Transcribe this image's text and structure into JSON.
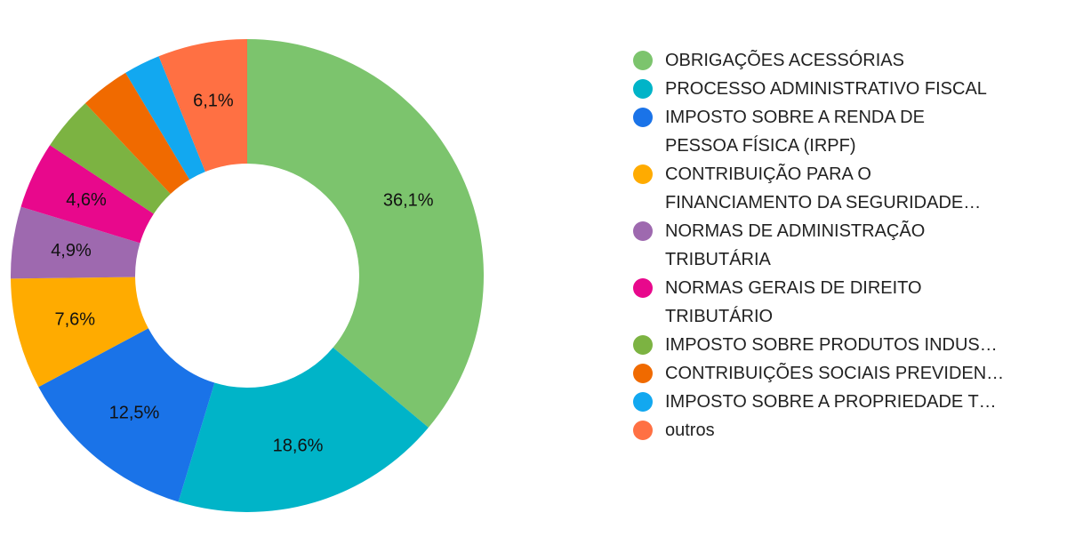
{
  "chart_data": {
    "type": "pie",
    "donut": true,
    "legend_position": "right",
    "slices": [
      {
        "label": "OBRIGAÇÕES ACESSÓRIAS",
        "lines": [
          "OBRIGAÇÕES ACESSÓRIAS"
        ],
        "value": 36.1,
        "display": "36,1%",
        "color": "#7cc46d"
      },
      {
        "label": "PROCESSO ADMINISTRATIVO FISCAL",
        "lines": [
          "PROCESSO ADMINISTRATIVO FISCAL"
        ],
        "value": 18.6,
        "display": "18,6%",
        "color": "#00b4c8"
      },
      {
        "label": "IMPOSTO SOBRE A RENDA DE PESSOA FÍSICA (IRPF)",
        "lines": [
          "IMPOSTO SOBRE A RENDA DE",
          "PESSOA FÍSICA (IRPF)"
        ],
        "value": 12.5,
        "display": "12,5%",
        "color": "#1a73e8"
      },
      {
        "label": "CONTRIBUIÇÃO PARA O FINANCIAMENTO DA SEGURIDADE…",
        "lines": [
          "CONTRIBUIÇÃO PARA O",
          "FINANCIAMENTO DA SEGURIDADE…"
        ],
        "value": 7.6,
        "display": "7,6%",
        "color": "#ffab00"
      },
      {
        "label": "NORMAS DE ADMINISTRAÇÃO TRIBUTÁRIA",
        "lines": [
          "NORMAS DE ADMINISTRAÇÃO",
          "TRIBUTÁRIA"
        ],
        "value": 4.9,
        "display": "4,9%",
        "color": "#9e69af"
      },
      {
        "label": "NORMAS GERAIS DE DIREITO TRIBUTÁRIO",
        "lines": [
          "NORMAS GERAIS DE DIREITO",
          "TRIBUTÁRIO"
        ],
        "value": 4.6,
        "display": "4,6%",
        "color": "#e8088c"
      },
      {
        "label": "IMPOSTO SOBRE PRODUTOS INDUS…",
        "lines": [
          "IMPOSTO SOBRE PRODUTOS INDUS…"
        ],
        "value": 3.7,
        "display": "",
        "color": "#7cb342"
      },
      {
        "label": "CONTRIBUIÇÕES SOCIAIS PREVIDEN…",
        "lines": [
          "CONTRIBUIÇÕES SOCIAIS PREVIDEN…"
        ],
        "value": 3.4,
        "display": "",
        "color": "#f06a00"
      },
      {
        "label": "IMPOSTO SOBRE A PROPRIEDADE T…",
        "lines": [
          "IMPOSTO SOBRE A PROPRIEDADE T…"
        ],
        "value": 2.5,
        "display": "",
        "color": "#12a8f0"
      },
      {
        "label": "outros",
        "lines": [
          "outros"
        ],
        "value": 6.1,
        "display": "6,1%",
        "color": "#ff7043"
      }
    ]
  }
}
